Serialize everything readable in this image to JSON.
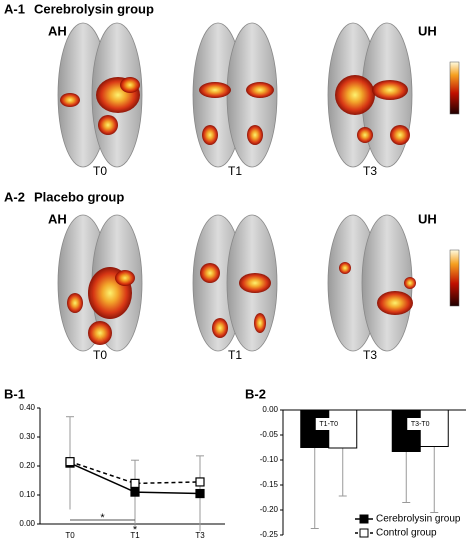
{
  "panels": [
    {
      "label": "A-1",
      "title": "Cerebrolysin group",
      "left_side": "AH",
      "right_side": "UH",
      "times": [
        "T0",
        "T1",
        "T3"
      ]
    },
    {
      "label": "A-2",
      "title": "Placebo group",
      "left_side": "AH",
      "right_side": "UH",
      "times": [
        "T0",
        "T1",
        "T3"
      ]
    }
  ],
  "chart_data": [
    {
      "type": "line",
      "label": "B-1",
      "categories": [
        "T0",
        "T1",
        "T3"
      ],
      "series": [
        {
          "color": "#000000",
          "dashed": false,
          "marker": "filled-square",
          "values": [
            0.21,
            0.11,
            0.105
          ],
          "errors": [
            0.16,
            0.11,
            0.13
          ]
        },
        {
          "color": "#000000",
          "dashed": true,
          "marker": "open-square",
          "values": [
            0.215,
            0.14,
            0.145
          ]
        }
      ],
      "ylim": [
        0,
        0.4
      ],
      "yticks": [
        {
          "value": 0,
          "label": "0.00"
        },
        {
          "value": 0.1,
          "label": "0.10"
        },
        {
          "value": 0.2,
          "label": "0.20"
        },
        {
          "value": 0.3,
          "label": "0.30"
        },
        {
          "value": 0.4,
          "label": "0.40"
        }
      ],
      "annotations": [
        "*",
        "*"
      ]
    },
    {
      "type": "bar",
      "label": "B-2",
      "categories": [
        "T1-T0",
        "T3-T0"
      ],
      "series": [
        {
          "name": "Cerebrolysin group",
          "color": "#000000",
          "values": [
            -0.075,
            -0.083
          ],
          "errors": [
            0.162,
            0.102
          ]
        },
        {
          "name": "Control group",
          "color": "#ffffff",
          "values": [
            -0.076,
            -0.073
          ],
          "errors": [
            0.096,
            0.132
          ]
        }
      ],
      "ylim": [
        -0.25,
        0
      ],
      "yticks": [
        {
          "value": 0,
          "label": "0.00"
        },
        {
          "value": -0.05,
          "label": "-0.05"
        },
        {
          "value": -0.1,
          "label": "-0.10"
        },
        {
          "value": -0.15,
          "label": "-0.15"
        },
        {
          "value": -0.2,
          "label": "-0.20"
        },
        {
          "value": -0.25,
          "label": "-0.25"
        }
      ],
      "legend": "lower-right"
    }
  ]
}
